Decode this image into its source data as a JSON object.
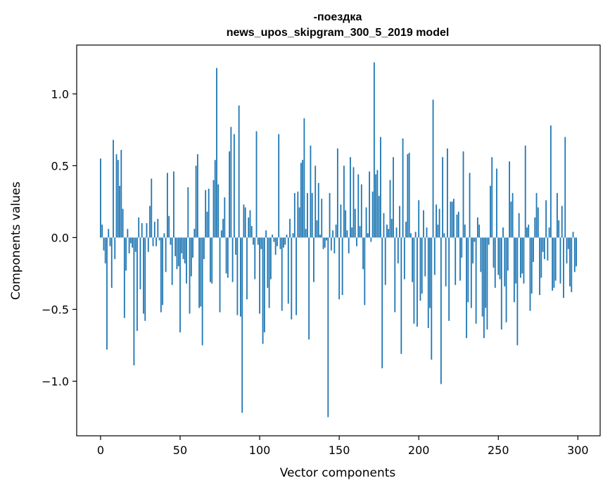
{
  "chart_data": {
    "type": "bar",
    "title": "-поездка",
    "subtitle": "news_upos_skipgram_300_5_2019 model",
    "xlabel": "Vector components",
    "ylabel": "Components values",
    "xlim": [
      -15,
      314
    ],
    "ylim": [
      -1.38,
      1.34
    ],
    "xticks": [
      0,
      50,
      100,
      150,
      200,
      250,
      300
    ],
    "yticks": [
      -1.0,
      -0.5,
      0.0,
      0.5,
      1.0
    ],
    "ytick_labels": [
      "−1.0",
      "−0.5",
      "0.0",
      "0.5",
      "1.0"
    ],
    "grid": false,
    "bar_color": "#1f77b4",
    "x": "0..299",
    "values": [
      0.55,
      0.09,
      -0.09,
      -0.18,
      -0.78,
      0.06,
      -0.06,
      -0.35,
      0.68,
      -0.15,
      0.58,
      0.54,
      0.36,
      0.61,
      0.2,
      -0.56,
      -0.23,
      0.06,
      -0.11,
      -0.04,
      -0.07,
      -0.89,
      -0.1,
      -0.65,
      0.14,
      -0.36,
      0.1,
      -0.53,
      -0.58,
      0.1,
      -0.1,
      0.22,
      0.41,
      -0.06,
      0.11,
      -0.06,
      0.13,
      -0.02,
      -0.52,
      -0.47,
      0.03,
      -0.24,
      0.45,
      0.15,
      -0.05,
      -0.33,
      0.46,
      -0.13,
      -0.22,
      -0.2,
      -0.66,
      -0.11,
      -0.15,
      -0.18,
      -0.32,
      0.35,
      -0.53,
      -0.27,
      -0.14,
      0.06,
      0.5,
      0.58,
      -0.49,
      -0.48,
      -0.75,
      -0.15,
      0.33,
      0.18,
      0.34,
      -0.31,
      -0.32,
      0.4,
      0.54,
      1.18,
      0.37,
      -0.52,
      0.05,
      0.13,
      0.28,
      -0.25,
      -0.28,
      0.6,
      0.77,
      -0.31,
      0.72,
      -0.12,
      -0.54,
      0.92,
      -0.55,
      -1.22,
      0.23,
      0.21,
      -0.43,
      0.14,
      0.19,
      0.08,
      -0.05,
      -0.29,
      0.74,
      -0.05,
      -0.53,
      -0.08,
      -0.74,
      -0.66,
      0.05,
      -0.35,
      -0.49,
      -0.29,
      0.02,
      -0.03,
      -0.12,
      -0.06,
      0.72,
      -0.08,
      -0.51,
      -0.07,
      -0.05,
      0.02,
      -0.46,
      0.13,
      -0.57,
      0.03,
      0.31,
      -0.54,
      0.32,
      0.21,
      0.52,
      0.54,
      0.83,
      0.06,
      0.31,
      -0.71,
      0.64,
      0.31,
      -0.31,
      0.5,
      0.12,
      0.38,
      0.02,
      0.27,
      -0.08,
      -0.07,
      -0.02,
      -1.25,
      0.31,
      -0.09,
      0.05,
      -0.11,
      0.09,
      0.62,
      -0.43,
      0.23,
      -0.4,
      0.5,
      0.19,
      0.05,
      -0.11,
      0.56,
      0.07,
      0.49,
      0.2,
      -0.06,
      0.44,
      0.08,
      0.37,
      -0.22,
      -0.47,
      0.21,
      0.03,
      0.46,
      -0.03,
      0.32,
      1.22,
      0.44,
      0.47,
      0.29,
      0.7,
      -0.91,
      0.17,
      -0.33,
      0.09,
      0.06,
      0.4,
      0.13,
      0.56,
      -0.52,
      0.07,
      -0.18,
      0.22,
      -0.81,
      0.69,
      -0.29,
      0.11,
      0.58,
      0.59,
      0.03,
      -0.31,
      -0.6,
      0.04,
      -0.62,
      0.26,
      -0.44,
      -0.39,
      0.19,
      -0.27,
      0.07,
      -0.63,
      -0.49,
      -0.85,
      0.96,
      -0.26,
      0.23,
      0.09,
      0.2,
      -1.02,
      0.56,
      0.03,
      -0.34,
      0.62,
      -0.58,
      0.25,
      0.25,
      0.27,
      -0.33,
      0.16,
      0.18,
      -0.3,
      -0.14,
      0.6,
      0.09,
      -0.7,
      -0.45,
      0.45,
      -0.49,
      -0.18,
      -0.03,
      -0.6,
      0.14,
      0.09,
      -0.24,
      -0.55,
      -0.7,
      -0.49,
      -0.64,
      -0.05,
      0.36,
      0.56,
      -0.21,
      -0.35,
      0.48,
      -0.26,
      -0.29,
      -0.64,
      0.07,
      -0.34,
      -0.59,
      -0.23,
      0.53,
      0.25,
      0.31,
      -0.45,
      -0.32,
      -0.75,
      0.17,
      -0.28,
      -0.25,
      -0.32,
      0.64,
      0.07,
      0.09,
      -0.51,
      -0.39,
      -0.17,
      0.14,
      0.31,
      0.21,
      -0.4,
      -0.28,
      -0.1,
      -0.15,
      0.26,
      -0.16,
      0.07,
      0.78,
      -0.37,
      -0.35,
      -0.3,
      0.31,
      0.12,
      -0.32,
      0.22,
      -0.42,
      0.7,
      -0.18,
      -0.08,
      -0.34,
      -0.38,
      0.04,
      -0.24,
      -0.2
    ]
  }
}
